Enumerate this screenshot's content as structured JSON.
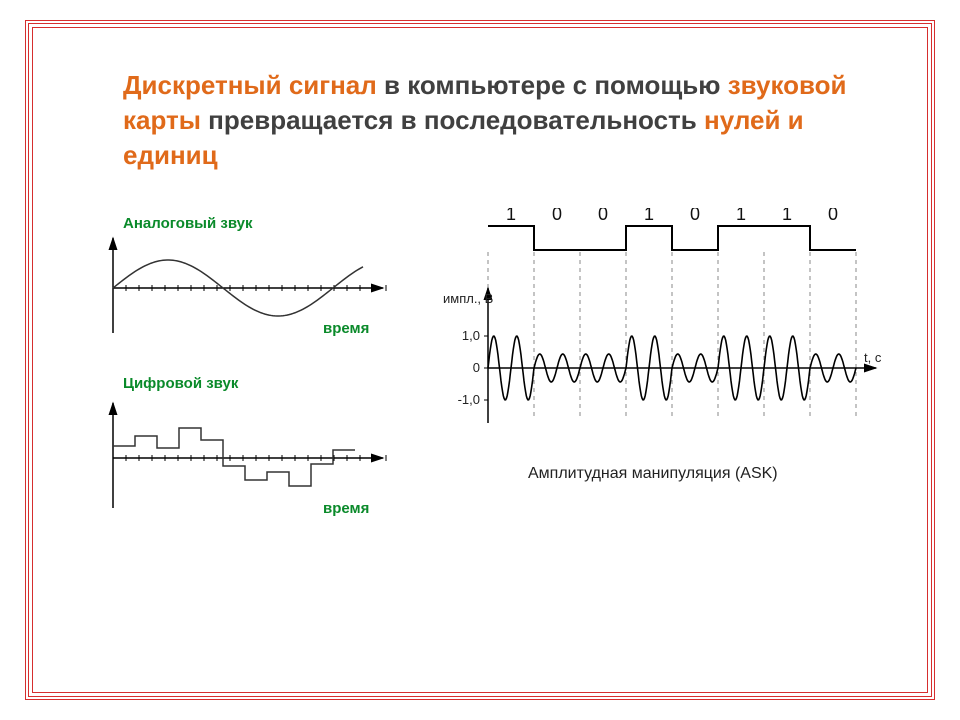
{
  "heading": {
    "p1_hl": "Дискретный сигнал",
    "p1_n": " в компьютере  с помощью ",
    "p2_hl": "звуковой карты",
    "p2_n": " превращается в последовательность ",
    "p3_hl": "нулей и единиц",
    "highlight_color": "#e06a1a",
    "normal_color": "#404040",
    "fontsize": 26
  },
  "analog": {
    "title": "Аналоговый звук",
    "xlabel": "время",
    "label_color": "#0a8a2a",
    "line_color": "#333333",
    "axis_color": "#000000",
    "amplitude": 28,
    "period": 220,
    "tick_count": 22,
    "tick_spacing": 13
  },
  "digital": {
    "title": "Цифровой звук",
    "xlabel": "время",
    "label_color": "#0a8a2a",
    "line_color": "#333333",
    "axis_color": "#000000",
    "levels": [
      12,
      22,
      10,
      30,
      18,
      -8,
      -22,
      -14,
      -28,
      -6,
      8
    ],
    "step_width": 22,
    "tick_count": 22,
    "tick_spacing": 13
  },
  "ask": {
    "title": "Амплитудная манипуляция (ASK)",
    "ylabel": "импл., В",
    "xlabel": "t, c",
    "bits": [
      "1",
      "0",
      "0",
      "1",
      "0",
      "1",
      "1",
      "0"
    ],
    "bit_width": 46,
    "amp_high": 32,
    "amp_low": 14,
    "cycles_per_bit": 2,
    "yticks": [
      "1,0",
      "0",
      "-1,0"
    ],
    "line_color": "#000000",
    "dash_color": "#888888",
    "digital_high_y": 18,
    "digital_low_y": 42,
    "wave_baseline_y": 160,
    "axis_fontsize": 13,
    "title_fontsize": 16
  },
  "frame": {
    "border_color": "#d62e2e"
  }
}
